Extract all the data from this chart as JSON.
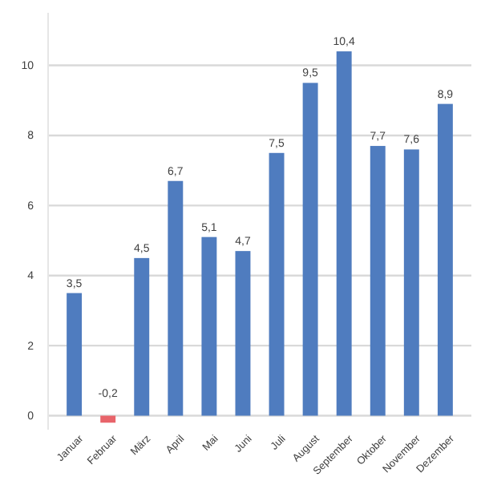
{
  "chart_data": {
    "type": "bar",
    "categories": [
      "Januar",
      "Februar",
      "März",
      "April",
      "Mai",
      "Juni",
      "Juli",
      "August",
      "September",
      "Oktober",
      "November",
      "Dezember"
    ],
    "values": [
      3.5,
      -0.2,
      4.5,
      6.7,
      5.1,
      4.7,
      7.5,
      9.5,
      10.4,
      7.7,
      7.6,
      8.9
    ],
    "colors": [
      "#4f7cbf",
      "#e8646a",
      "#4f7cbf",
      "#4f7cbf",
      "#4f7cbf",
      "#4f7cbf",
      "#4f7cbf",
      "#4f7cbf",
      "#4f7cbf",
      "#4f7cbf",
      "#4f7cbf",
      "#4f7cbf"
    ],
    "value_labels": [
      "3,5",
      "-0,2",
      "4,5",
      "6,7",
      "5,1",
      "4,7",
      "7,5",
      "9,5",
      "10,4",
      "7,7",
      "7,6",
      "8,9"
    ],
    "ylim": [
      -0.4,
      11.5
    ],
    "yticks": [
      0,
      2,
      4,
      6,
      8,
      10
    ],
    "grid": "y"
  }
}
